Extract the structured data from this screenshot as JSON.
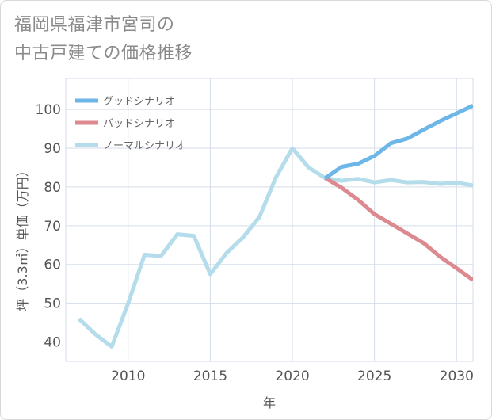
{
  "title": {
    "line1": "福岡県福津市宮司の",
    "line2": "中古戸建ての価格推移"
  },
  "chart_data": {
    "type": "line",
    "xlabel": "年",
    "ylabel": "坪（3.3㎡）単価（万円）",
    "xlim": [
      2006.2,
      2031
    ],
    "ylim": [
      35,
      108
    ],
    "x_ticks": [
      2010,
      2015,
      2020,
      2025,
      2030
    ],
    "y_ticks": [
      40,
      50,
      60,
      70,
      80,
      90,
      100
    ],
    "grid": true,
    "legend_position": "top-left",
    "series": [
      {
        "name": "グッドシナリオ",
        "color": "#6cb6e8",
        "x": [
          2022,
          2023,
          2024,
          2025,
          2026,
          2027,
          2028,
          2029,
          2030,
          2031
        ],
        "values": [
          82.3,
          85.2,
          86.0,
          88.0,
          91.3,
          92.5,
          94.8,
          97.0,
          99.0,
          101.0
        ]
      },
      {
        "name": "バッドシナリオ",
        "color": "#dc8a8f",
        "x": [
          2022,
          2023,
          2024,
          2025,
          2026,
          2027,
          2028,
          2029,
          2030,
          2031
        ],
        "values": [
          82.3,
          79.8,
          76.7,
          73.0,
          70.5,
          68.0,
          65.5,
          62.0,
          59.0,
          56.0
        ]
      },
      {
        "name": "ノーマルシナリオ",
        "color": "#b4dcea",
        "x": [
          2007,
          2008,
          2009,
          2010,
          2011,
          2012,
          2013,
          2014,
          2015,
          2016,
          2017,
          2018,
          2019,
          2020,
          2021,
          2022,
          2023,
          2024,
          2025,
          2026,
          2027,
          2028,
          2029,
          2030,
          2031
        ],
        "values": [
          46.0,
          42.0,
          38.8,
          50.0,
          62.5,
          62.2,
          67.8,
          67.4,
          57.5,
          63.0,
          67.0,
          72.3,
          82.5,
          90.0,
          85.0,
          82.3,
          81.6,
          82.1,
          81.2,
          81.8,
          81.2,
          81.3,
          80.8,
          81.1,
          80.4
        ]
      }
    ]
  }
}
